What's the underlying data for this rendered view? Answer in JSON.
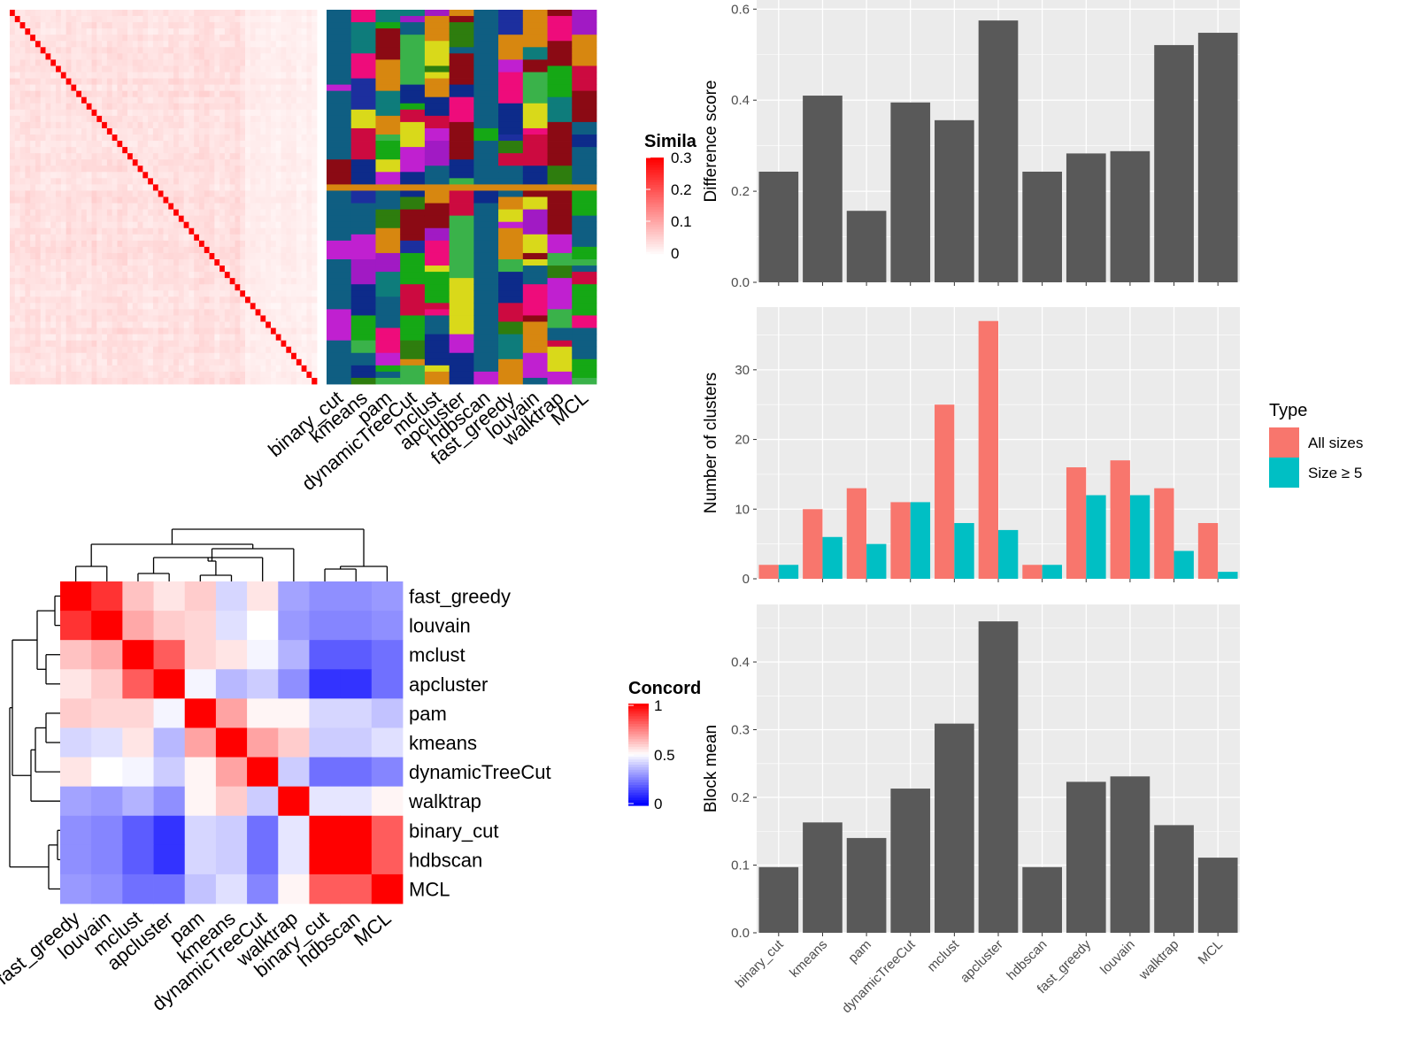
{
  "chart_data": [
    {
      "type": "heatmap",
      "description_id": "similarity-heatmap",
      "matrix_size": 60,
      "legend": {
        "title": "Similarity",
        "title_visible": "Simila",
        "ticks": [
          "0",
          "0.1",
          "0.2",
          "0.3"
        ],
        "colors": [
          "#ffffff",
          "#ff0000"
        ]
      },
      "note": "pairwise similarity of cells; diagonal is maximal (~0.3), off-diagonal ~0.05-0.15"
    },
    {
      "type": "heatmap",
      "description_id": "cluster-assignment-strip",
      "columns": [
        "binary_cut",
        "kmeans",
        "pam",
        "dynamicTreeCut",
        "mclust",
        "apcluster",
        "hdbscan",
        "fast_greedy",
        "louvain",
        "walktrap",
        "MCL"
      ],
      "palette": [
        "#0f5e82",
        "#0b3d78",
        "#0d2b8a",
        "#2e7d0e",
        "#15a815",
        "#ee0c7b",
        "#c020d0",
        "#a11ac4",
        "#8b0a14",
        "#cc0a40",
        "#0e7c7b",
        "#d78710",
        "#d9d91a",
        "#3ab24a",
        "#1c2f9e"
      ]
    },
    {
      "type": "heatmap",
      "description_id": "concordance-heatmap",
      "labels": [
        "fast_greedy",
        "louvain",
        "mclust",
        "apcluster",
        "pam",
        "kmeans",
        "dynamicTreeCut",
        "walktrap",
        "binary_cut",
        "hdbscan",
        "MCL"
      ],
      "values": [
        [
          1.0,
          0.9,
          0.62,
          0.55,
          0.6,
          0.42,
          0.55,
          0.32,
          0.28,
          0.28,
          0.3
        ],
        [
          0.9,
          1.0,
          0.67,
          0.6,
          0.58,
          0.44,
          0.5,
          0.3,
          0.26,
          0.26,
          0.28
        ],
        [
          0.62,
          0.67,
          1.0,
          0.82,
          0.58,
          0.55,
          0.48,
          0.35,
          0.18,
          0.18,
          0.22
        ],
        [
          0.55,
          0.6,
          0.82,
          1.0,
          0.48,
          0.36,
          0.4,
          0.28,
          0.1,
          0.1,
          0.22
        ],
        [
          0.6,
          0.58,
          0.58,
          0.48,
          1.0,
          0.68,
          0.52,
          0.52,
          0.42,
          0.42,
          0.38
        ],
        [
          0.42,
          0.44,
          0.55,
          0.36,
          0.68,
          1.0,
          0.68,
          0.6,
          0.4,
          0.4,
          0.44
        ],
        [
          0.55,
          0.5,
          0.48,
          0.4,
          0.52,
          0.68,
          1.0,
          0.4,
          0.22,
          0.22,
          0.26
        ],
        [
          0.32,
          0.3,
          0.35,
          0.28,
          0.52,
          0.6,
          0.4,
          1.0,
          0.45,
          0.45,
          0.52
        ],
        [
          0.28,
          0.26,
          0.18,
          0.1,
          0.42,
          0.4,
          0.22,
          0.45,
          1.0,
          1.0,
          0.82
        ],
        [
          0.28,
          0.26,
          0.18,
          0.1,
          0.42,
          0.4,
          0.22,
          0.45,
          1.0,
          1.0,
          0.82
        ],
        [
          0.3,
          0.28,
          0.22,
          0.22,
          0.38,
          0.44,
          0.26,
          0.52,
          0.82,
          0.82,
          1.0
        ]
      ],
      "legend": {
        "title": "Concordance",
        "title_visible": "Concord",
        "ticks": [
          "0",
          "0.5",
          "1"
        ],
        "colors": [
          "#0000ff",
          "#ffffff",
          "#ff0000"
        ]
      }
    },
    {
      "type": "bar",
      "description_id": "difference-score",
      "categories": [
        "binary_cut",
        "kmeans",
        "pam",
        "dynamicTreeCut",
        "mclust",
        "apcluster",
        "hdbscan",
        "fast_greedy",
        "louvain",
        "walktrap",
        "MCL"
      ],
      "values": [
        0.243,
        0.41,
        0.157,
        0.395,
        0.356,
        0.575,
        0.243,
        0.283,
        0.288,
        0.521,
        0.548
      ],
      "ylabel": "Difference score",
      "ylim": [
        0,
        0.62
      ],
      "yticks": [
        "0.0",
        "0.2",
        "0.4",
        "0.6"
      ],
      "color": "#595959"
    },
    {
      "type": "bar",
      "description_id": "number-of-clusters",
      "categories": [
        "binary_cut",
        "kmeans",
        "pam",
        "dynamicTreeCut",
        "mclust",
        "apcluster",
        "hdbscan",
        "fast_greedy",
        "louvain",
        "walktrap",
        "MCL"
      ],
      "series": [
        {
          "name": "All sizes",
          "values": [
            2,
            10,
            13,
            11,
            25,
            37,
            2,
            16,
            17,
            13,
            8
          ],
          "color": "#f8766d"
        },
        {
          "name": "Size ≥ 5",
          "values": [
            2,
            6,
            5,
            11,
            8,
            7,
            2,
            12,
            12,
            4,
            1
          ],
          "color": "#00bfc4"
        }
      ],
      "ylabel": "Number of clusters",
      "ylim": [
        0,
        39
      ],
      "yticks": [
        "0",
        "10",
        "20",
        "30"
      ],
      "legend": {
        "title": "Type",
        "position": "right"
      }
    },
    {
      "type": "bar",
      "description_id": "block-mean",
      "categories": [
        "binary_cut",
        "kmeans",
        "pam",
        "dynamicTreeCut",
        "mclust",
        "apcluster",
        "hdbscan",
        "fast_greedy",
        "louvain",
        "walktrap",
        "MCL"
      ],
      "values": [
        0.097,
        0.163,
        0.14,
        0.213,
        0.309,
        0.46,
        0.097,
        0.223,
        0.231,
        0.159,
        0.111
      ],
      "ylabel": "Block mean",
      "ylim": [
        0,
        0.485
      ],
      "yticks": [
        "0.0",
        "0.1",
        "0.2",
        "0.3",
        "0.4"
      ],
      "color": "#595959"
    }
  ]
}
